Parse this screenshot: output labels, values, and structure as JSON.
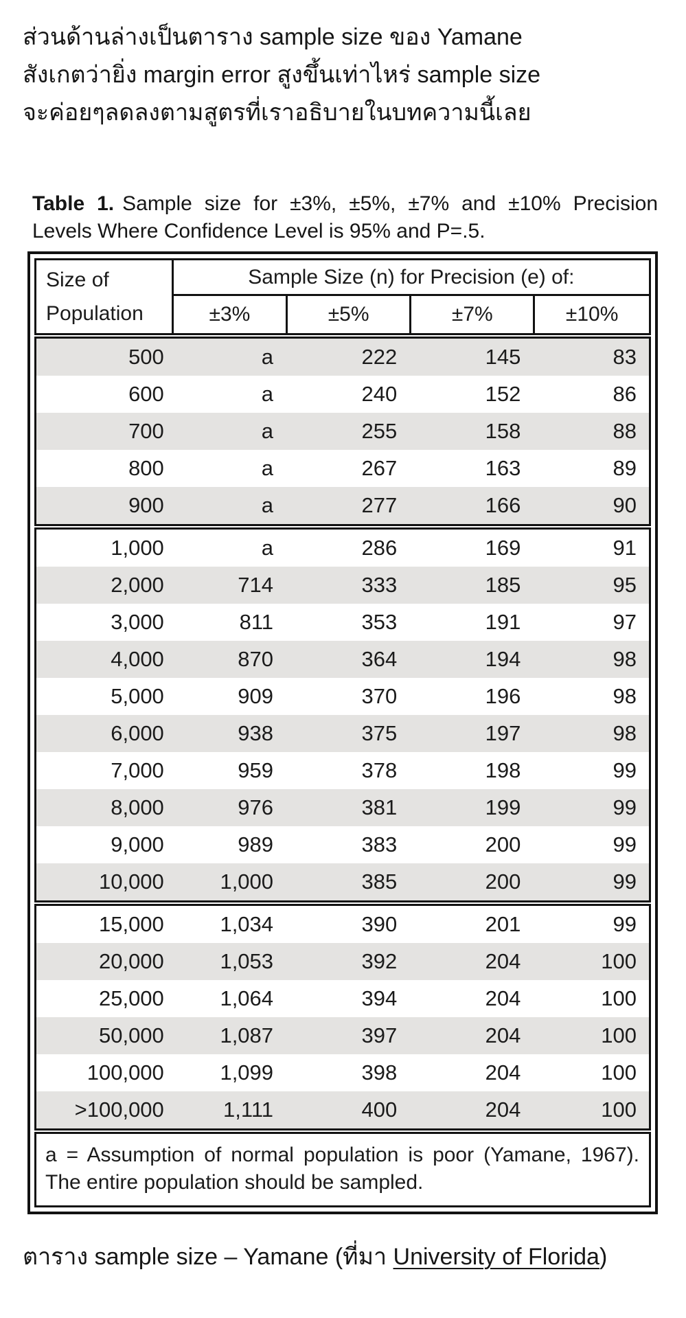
{
  "intro": {
    "lines": [
      "ส่วนด้านล่างเป็นตาราง sample size ของ Yamane",
      "สังเกตว่ายิ่ง margin error สูงขึ้นเท่าไหร่ sample size",
      "จะค่อยๆลดลงตามสูตรที่เราอธิบายในบทความนี้เลย"
    ]
  },
  "table": {
    "title_label": "Table 1.",
    "title_rest": "Sample size for ±3%, ±5%, ±7% and ±10% Precision Levels Where Confidence Level is 95% and P=.5.",
    "header": {
      "population_line1": "Size of",
      "population_line2": "Population",
      "group_label": "Sample Size (n) for Precision (e) of:",
      "precision_cols": [
        "±3%",
        "±5%",
        "±7%",
        "±10%"
      ]
    },
    "groups": [
      {
        "rows": [
          [
            "500",
            "a",
            "222",
            "145",
            "83"
          ],
          [
            "600",
            "a",
            "240",
            "152",
            "86"
          ],
          [
            "700",
            "a",
            "255",
            "158",
            "88"
          ],
          [
            "800",
            "a",
            "267",
            "163",
            "89"
          ],
          [
            "900",
            "a",
            "277",
            "166",
            "90"
          ]
        ]
      },
      {
        "rows": [
          [
            "1,000",
            "a",
            "286",
            "169",
            "91"
          ],
          [
            "2,000",
            "714",
            "333",
            "185",
            "95"
          ],
          [
            "3,000",
            "811",
            "353",
            "191",
            "97"
          ],
          [
            "4,000",
            "870",
            "364",
            "194",
            "98"
          ],
          [
            "5,000",
            "909",
            "370",
            "196",
            "98"
          ],
          [
            "6,000",
            "938",
            "375",
            "197",
            "98"
          ],
          [
            "7,000",
            "959",
            "378",
            "198",
            "99"
          ],
          [
            "8,000",
            "976",
            "381",
            "199",
            "99"
          ],
          [
            "9,000",
            "989",
            "383",
            "200",
            "99"
          ],
          [
            "10,000",
            "1,000",
            "385",
            "200",
            "99"
          ]
        ]
      },
      {
        "rows": [
          [
            "15,000",
            "1,034",
            "390",
            "201",
            "99"
          ],
          [
            "20,000",
            "1,053",
            "392",
            "204",
            "100"
          ],
          [
            "25,000",
            "1,064",
            "394",
            "204",
            "100"
          ],
          [
            "50,000",
            "1,087",
            "397",
            "204",
            "100"
          ],
          [
            "100,000",
            "1,099",
            "398",
            "204",
            "100"
          ],
          [
            ">100,000",
            "1,111",
            "400",
            "204",
            "100"
          ]
        ]
      }
    ],
    "footnote": "a = Assumption of normal population is poor (Yamane, 1967).  The entire population should be sampled."
  },
  "caption": {
    "prefix": "ตาราง sample size – Yamane (ที่มา ",
    "link_text": "University of Florida",
    "suffix": ")"
  },
  "colors": {
    "row_shade": "#e4e3e1",
    "border": "#121212",
    "text": "#1b1b1b",
    "background": "#ffffff"
  }
}
